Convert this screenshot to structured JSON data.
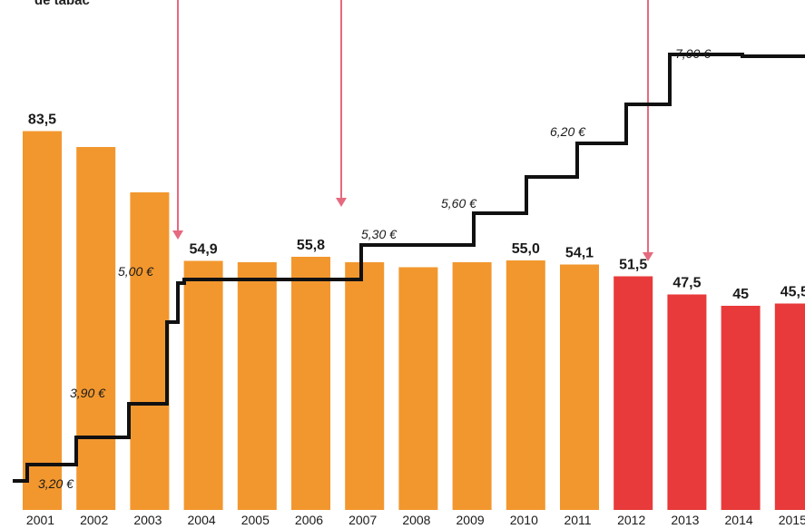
{
  "header": {
    "top_text": "de tabac"
  },
  "colors": {
    "orange": "#f2972e",
    "red": "#e83a3a",
    "line": "#111111",
    "arrow": "#e56a7f"
  },
  "chart_data": {
    "type": "bar",
    "categories": [
      "2001",
      "2002",
      "2003",
      "2004",
      "2005",
      "2006",
      "2007",
      "2008",
      "2009",
      "2010",
      "2011",
      "2012",
      "2013",
      "2014",
      "2015"
    ],
    "series": [
      {
        "values": [
          83.5,
          80.0,
          70.0,
          54.9,
          54.6,
          55.8,
          54.6,
          53.5,
          54.6,
          55.0,
          54.1,
          51.5,
          47.5,
          45,
          45.5
        ],
        "value_labels": [
          "83,5",
          "",
          "",
          "54,9",
          "",
          "55,8",
          "",
          "",
          "",
          "55,0",
          "54,1",
          "51,5",
          "47,5",
          "45",
          "45,5"
        ],
        "colors": [
          "orange",
          "orange",
          "orange",
          "orange",
          "orange",
          "orange",
          "orange",
          "orange",
          "orange",
          "orange",
          "orange",
          "red",
          "red",
          "red",
          "red"
        ]
      }
    ],
    "ylim": [
      0,
      100
    ],
    "price_steps": [
      {
        "label": "3,20 €",
        "value": 3.2
      },
      {
        "label": "3,90 €",
        "value": 3.9
      },
      {
        "label": "5,00 €",
        "value": 5.0
      },
      {
        "label": "5,30 €",
        "value": 5.3
      },
      {
        "label": "5,60 €",
        "value": 5.6
      },
      {
        "label": "6,20 €",
        "value": 6.2
      },
      {
        "label": "7,00 €",
        "value": 7.0
      }
    ],
    "arrows": [
      "2004",
      "2007",
      "2012"
    ]
  }
}
